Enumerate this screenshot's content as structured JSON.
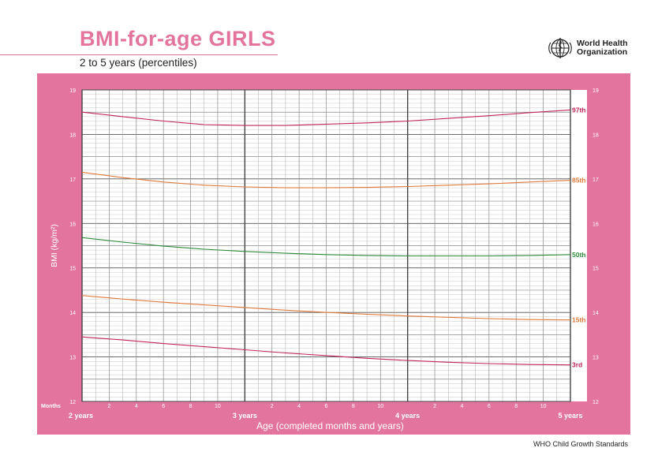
{
  "header": {
    "title": "BMI-for-age GIRLS",
    "subtitle": "2 to 5 years (percentiles)",
    "org_line1": "World Health",
    "org_line2": "Organization"
  },
  "footer": {
    "source": "WHO Child Growth Standards"
  },
  "colors": {
    "brand_pink": "#e3749e",
    "p97": "#c0265a",
    "p85": "#e07a3c",
    "p50": "#2e8b3a",
    "p15": "#e07a3c",
    "p3": "#c0265a"
  },
  "chart_data": {
    "type": "line",
    "title": "BMI-for-age GIRLS",
    "subtitle": "2 to 5 years (percentiles)",
    "xlabel": "Age (completed months and years)",
    "ylabel": "BMI (kg/m²)",
    "x_unit_label": "Months",
    "xlim": [
      24,
      60
    ],
    "ylim": [
      12,
      19
    ],
    "y_ticks": [
      "12",
      "13",
      "14",
      "15",
      "16",
      "17",
      "18",
      "19"
    ],
    "x_major_labels": [
      "2 years",
      "3 years",
      "4 years",
      "5 years"
    ],
    "x_minor_labels": [
      "2",
      "4",
      "6",
      "8",
      "10"
    ],
    "grid": true,
    "x": [
      24,
      27,
      30,
      33,
      36,
      39,
      42,
      45,
      48,
      51,
      54,
      57,
      60
    ],
    "series": [
      {
        "name": "97th",
        "color": "#c0265a",
        "values": [
          18.5,
          18.4,
          18.3,
          18.22,
          18.2,
          18.2,
          18.23,
          18.26,
          18.3,
          18.36,
          18.42,
          18.49,
          18.55
        ]
      },
      {
        "name": "85th",
        "color": "#e07a3c",
        "values": [
          17.15,
          17.03,
          16.93,
          16.86,
          16.82,
          16.8,
          16.8,
          16.81,
          16.83,
          16.86,
          16.89,
          16.93,
          16.97
        ]
      },
      {
        "name": "50th",
        "color": "#2e8b3a",
        "values": [
          15.68,
          15.58,
          15.49,
          15.42,
          15.37,
          15.33,
          15.3,
          15.28,
          15.27,
          15.27,
          15.27,
          15.28,
          15.3
        ]
      },
      {
        "name": "15th",
        "color": "#e07a3c",
        "values": [
          14.38,
          14.3,
          14.23,
          14.17,
          14.11,
          14.05,
          14.0,
          13.96,
          13.92,
          13.89,
          13.86,
          13.84,
          13.83
        ]
      },
      {
        "name": "3rd",
        "color": "#c0265a",
        "values": [
          13.45,
          13.38,
          13.3,
          13.23,
          13.16,
          13.09,
          13.03,
          12.97,
          12.92,
          12.88,
          12.85,
          12.83,
          12.82
        ]
      }
    ]
  }
}
